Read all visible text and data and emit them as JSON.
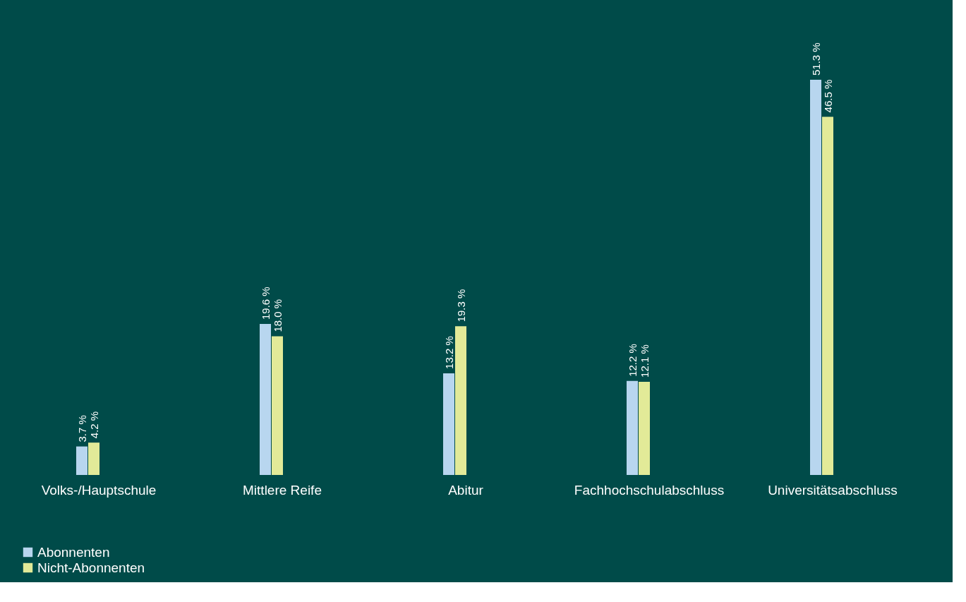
{
  "chart_data": {
    "type": "bar",
    "categories": [
      "Volks-/Hauptschule",
      "Mittlere Reife",
      "Abitur",
      "Fachhochschulabschluss",
      "Universitätsabschluss"
    ],
    "series": [
      {
        "name": "Abonnenten",
        "color": "#b8d6ef",
        "values": [
          3.7,
          19.6,
          13.2,
          12.2,
          51.3
        ],
        "value_labels": [
          "3.7 %",
          "19.6 %",
          "13.2 %",
          "12.2 %",
          "51.3 %"
        ]
      },
      {
        "name": "Nicht-Abonnenten",
        "color": "#e2ea98",
        "values": [
          4.2,
          18.0,
          19.3,
          12.1,
          46.5
        ],
        "value_labels": [
          "4.2 %",
          "18.0 %",
          "19.3 %",
          "12.1 %",
          "46.5 %"
        ]
      }
    ],
    "legend": "bottom left",
    "grid": false
  }
}
